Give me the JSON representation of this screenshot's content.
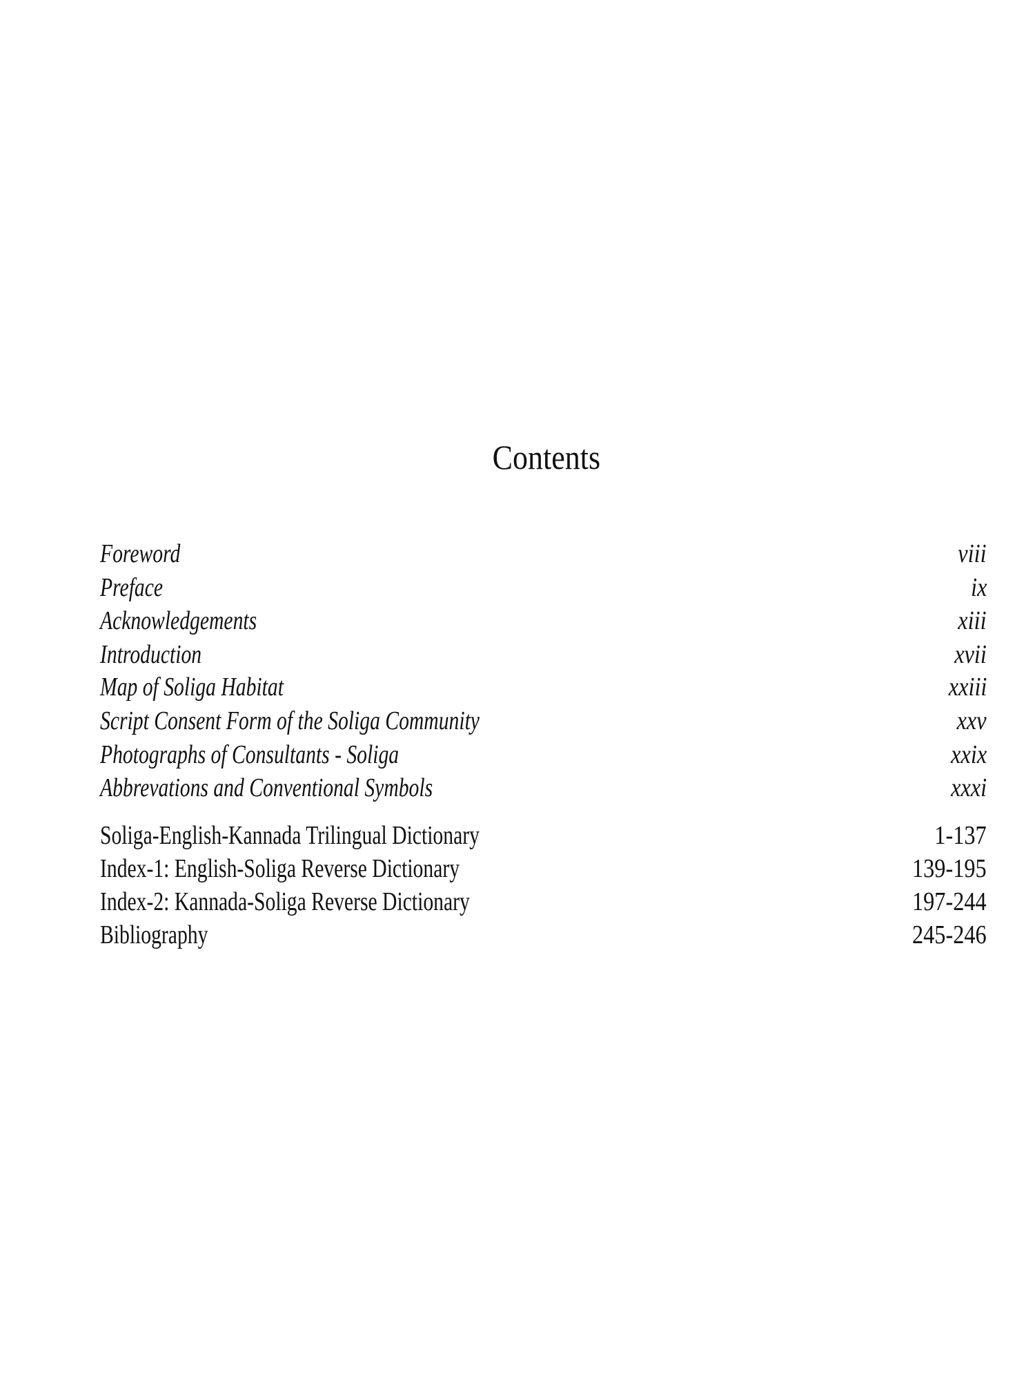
{
  "title": "Contents",
  "front_matter": [
    {
      "label": "Foreword",
      "page": "viii"
    },
    {
      "label": "Preface",
      "page": "ix"
    },
    {
      "label": "Acknowledgements",
      "page": "xiii"
    },
    {
      "label": "Introduction",
      "page": "xvii"
    },
    {
      "label": "Map of Soliga Habitat",
      "page": "xxiii"
    },
    {
      "label": "Script Consent Form of the Soliga Community",
      "page": "xxv"
    },
    {
      "label": "Photographs of Consultants - Soliga",
      "page": "xxix"
    },
    {
      "label": "Abbrevations and Conventional Symbols",
      "page": "xxxi"
    }
  ],
  "main_matter": [
    {
      "label": "Soliga-English-Kannada Trilingual Dictionary",
      "page": "1-137"
    },
    {
      "label": "Index-1: English-Soliga Reverse Dictionary",
      "page": "139-195"
    },
    {
      "label": "Index-2: Kannada-Soliga Reverse Dictionary",
      "page": "197-244"
    },
    {
      "label": "Bibliography",
      "page": "245-246"
    }
  ]
}
